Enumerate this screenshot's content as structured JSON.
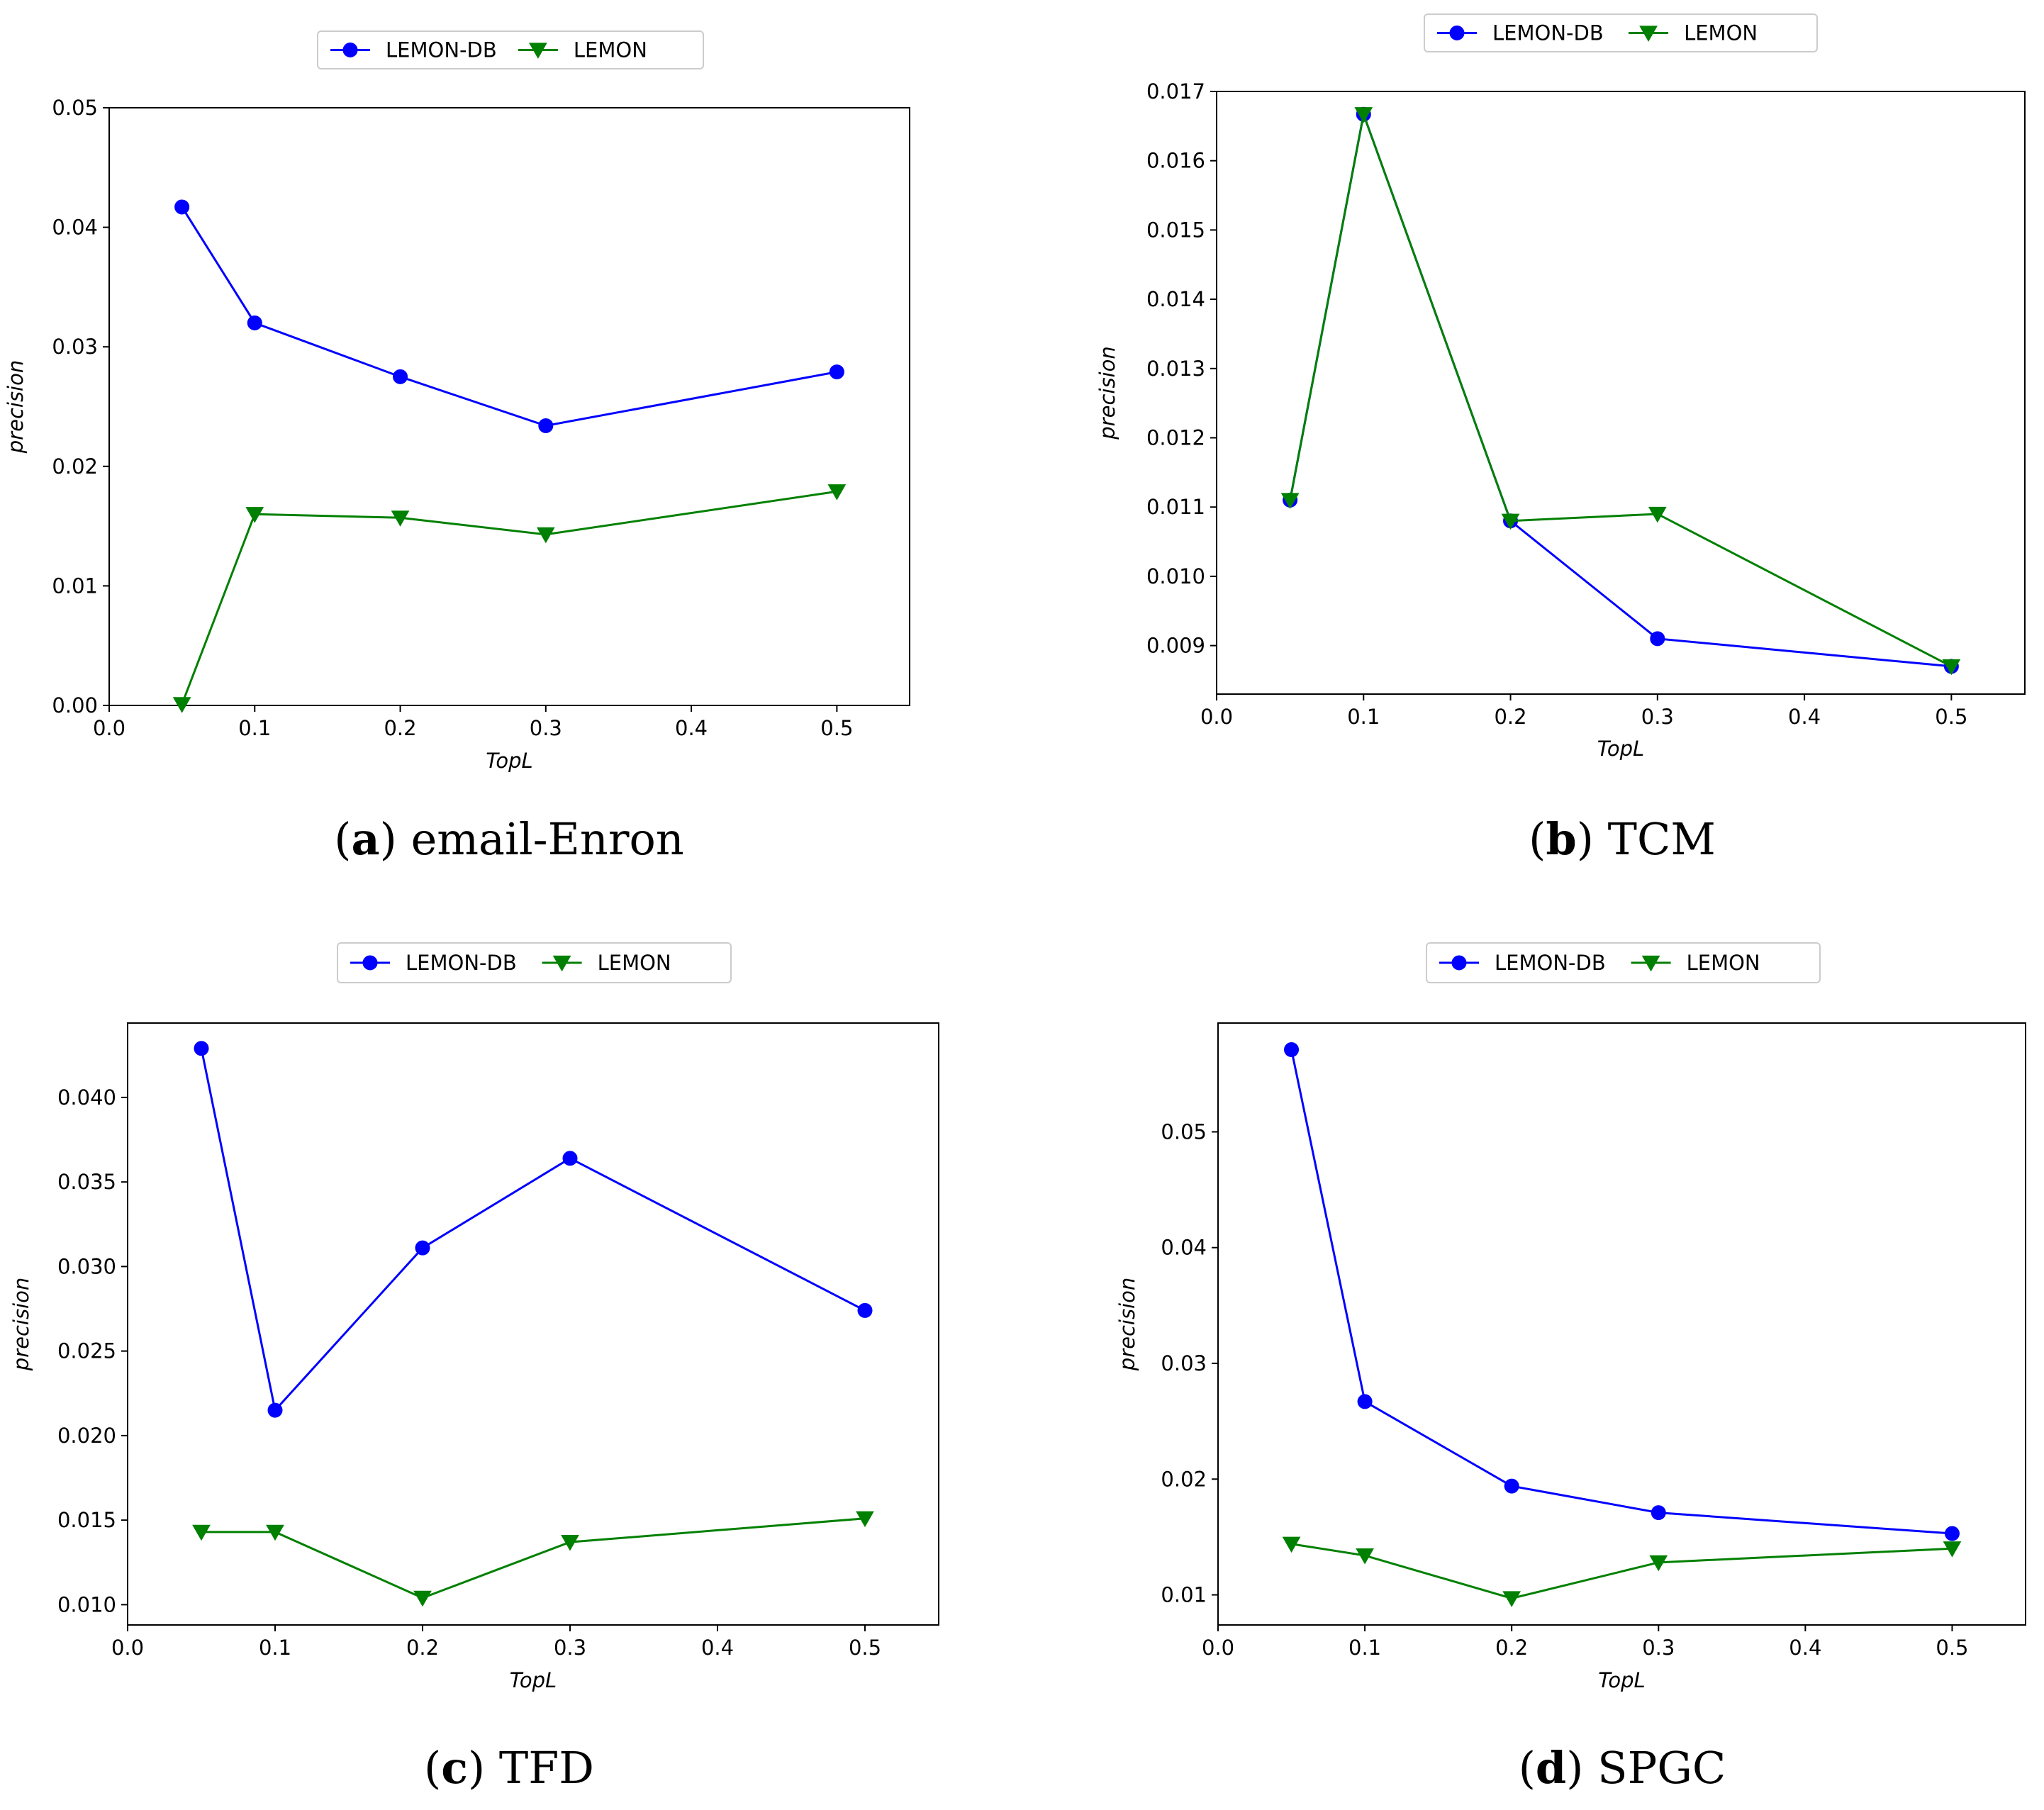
{
  "chart_data": [
    {
      "type": "line",
      "panel": "a",
      "caption_letter": "a",
      "caption_text": "email-Enron",
      "xlabel": "TopL",
      "ylabel": "precision",
      "xlim": [
        0.0,
        0.55
      ],
      "ylim": [
        0.0,
        0.05
      ],
      "xticks": [
        "0.0",
        "0.1",
        "0.2",
        "0.3",
        "0.4",
        "0.5"
      ],
      "yticks": [
        "0.00",
        "0.01",
        "0.02",
        "0.03",
        "0.04",
        "0.05"
      ],
      "x": [
        0.05,
        0.1,
        0.2,
        0.3,
        0.5
      ],
      "series": [
        {
          "name": "LEMON-DB",
          "color": "#0000ff",
          "marker": "circle",
          "values": [
            0.0417,
            0.032,
            0.0275,
            0.0234,
            0.0279
          ]
        },
        {
          "name": "LEMON",
          "color": "#008000",
          "marker": "triangle-down",
          "values": [
            0.0001,
            0.016,
            0.0157,
            0.0143,
            0.0179
          ]
        }
      ]
    },
    {
      "type": "line",
      "panel": "b",
      "caption_letter": "b",
      "caption_text": "TCM",
      "xlabel": "TopL",
      "ylabel": "precision",
      "xlim": [
        0.0,
        0.55
      ],
      "ylim": [
        0.0083,
        0.017
      ],
      "xticks": [
        "0.0",
        "0.1",
        "0.2",
        "0.3",
        "0.4",
        "0.5"
      ],
      "yticks": [
        "0.009",
        "0.010",
        "0.011",
        "0.012",
        "0.013",
        "0.014",
        "0.015",
        "0.016",
        "0.017"
      ],
      "x": [
        0.05,
        0.1,
        0.2,
        0.3,
        0.5
      ],
      "series": [
        {
          "name": "LEMON-DB",
          "color": "#0000ff",
          "marker": "circle",
          "values": [
            0.0111,
            0.01667,
            0.0108,
            0.0091,
            0.0087
          ]
        },
        {
          "name": "LEMON",
          "color": "#008000",
          "marker": "triangle-down",
          "values": [
            0.0111,
            0.01667,
            0.0108,
            0.0109,
            0.0087
          ]
        }
      ]
    },
    {
      "type": "line",
      "panel": "c",
      "caption_letter": "c",
      "caption_text": "TFD",
      "xlabel": "TopL",
      "ylabel": "precision",
      "xlim": [
        0.0,
        0.55
      ],
      "ylim": [
        0.0088,
        0.0444
      ],
      "xticks": [
        "0.0",
        "0.1",
        "0.2",
        "0.3",
        "0.4",
        "0.5"
      ],
      "yticks": [
        "0.010",
        "0.015",
        "0.020",
        "0.025",
        "0.030",
        "0.035",
        "0.040"
      ],
      "x": [
        0.05,
        0.1,
        0.2,
        0.3,
        0.5
      ],
      "series": [
        {
          "name": "LEMON-DB",
          "color": "#0000ff",
          "marker": "circle",
          "values": [
            0.0429,
            0.0215,
            0.0311,
            0.0364,
            0.0274
          ]
        },
        {
          "name": "LEMON",
          "color": "#008000",
          "marker": "triangle-down",
          "values": [
            0.0143,
            0.0143,
            0.0104,
            0.0137,
            0.0151
          ]
        }
      ]
    },
    {
      "type": "line",
      "panel": "d",
      "caption_letter": "d",
      "caption_text": "SPGC",
      "xlabel": "TopL",
      "ylabel": "precision",
      "xlim": [
        0.0,
        0.55
      ],
      "ylim": [
        0.0074,
        0.0594
      ],
      "xticks": [
        "0.0",
        "0.1",
        "0.2",
        "0.3",
        "0.4",
        "0.5"
      ],
      "yticks": [
        "0.01",
        "0.02",
        "0.03",
        "0.04",
        "0.05"
      ],
      "x": [
        0.05,
        0.1,
        0.2,
        0.3,
        0.5
      ],
      "series": [
        {
          "name": "LEMON-DB",
          "color": "#0000ff",
          "marker": "circle",
          "values": [
            0.0571,
            0.0267,
            0.0194,
            0.0171,
            0.0153
          ]
        },
        {
          "name": "LEMON",
          "color": "#008000",
          "marker": "triangle-down",
          "values": [
            0.0144,
            0.0134,
            0.0097,
            0.0128,
            0.014
          ]
        }
      ]
    }
  ]
}
